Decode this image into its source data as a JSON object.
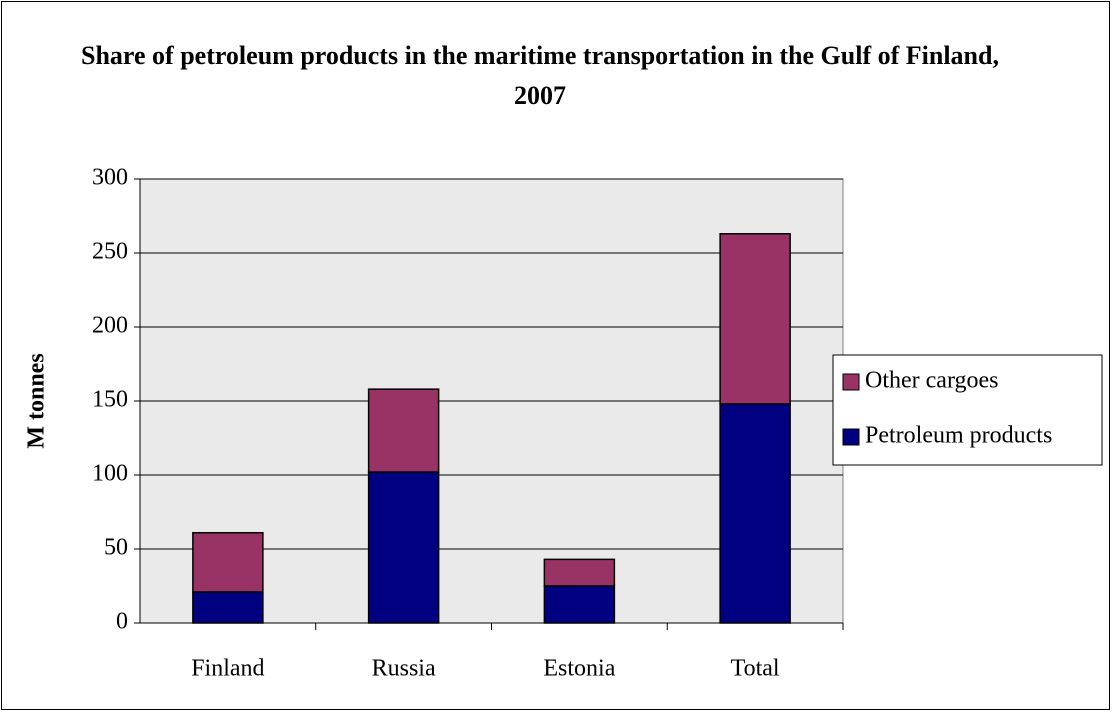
{
  "chart_data": {
    "type": "stacked_bar",
    "title": "Share of petroleum products in the maritime transportation in the Gulf of Finland, 2007",
    "y_label": "M tonnes",
    "categories": [
      "Finland",
      "Russia",
      "Estonia",
      "Total"
    ],
    "series": [
      {
        "name": "Petroleum products",
        "color": "#000080",
        "values": [
          21,
          102,
          25,
          148
        ]
      },
      {
        "name": "Other cargoes",
        "color": "#993366",
        "values": [
          40,
          56,
          18,
          115
        ]
      }
    ],
    "ylim": [
      0,
      300
    ],
    "yticks": [
      0,
      50,
      100,
      150,
      200,
      250,
      300
    ],
    "grid": true,
    "legend": "right"
  }
}
